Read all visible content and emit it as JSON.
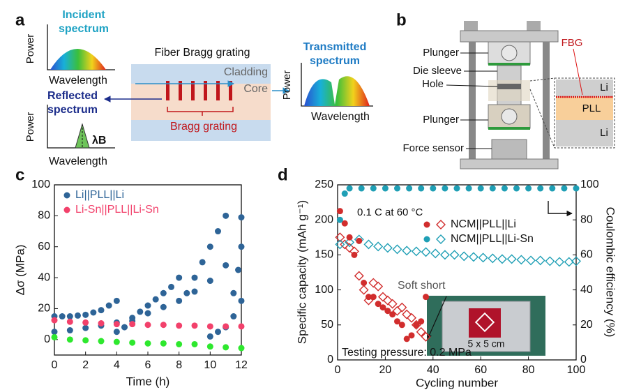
{
  "panels": {
    "a": {
      "label": "a",
      "incident_spectrum": [
        "Incident",
        "spectrum"
      ],
      "power": "Power",
      "wavelength": "Wavelength",
      "fiber_title": "Fiber Bragg grating",
      "cladding": "Cladding",
      "core": "Core",
      "transmitted_spectrum": [
        "Transmitted",
        "spectrum"
      ],
      "reflected_spectrum": [
        "Reflected",
        "spectrum"
      ],
      "bragg_grating": "Bragg grating",
      "lambda_b": "λB"
    },
    "b": {
      "label": "b",
      "fbg": "FBG",
      "plunger": "Plunger",
      "die_sleeve": "Die sleeve",
      "hole": "Hole",
      "force_sensor": "Force sensor",
      "li": "Li",
      "pll": "PLL"
    }
  },
  "chart_data": [
    {
      "type": "scatter",
      "panel": "c",
      "x_label": "Time (h)",
      "y_label": "Δσ (MPa)",
      "xlim": [
        0,
        12
      ],
      "xticks": [
        0,
        2,
        4,
        6,
        8,
        10,
        12
      ],
      "ylim": [
        -10,
        100
      ],
      "yticks": [
        0,
        20,
        40,
        60,
        80,
        100
      ],
      "legend": "upper left",
      "series": [
        {
          "name": "Li||PLL||Li",
          "color": "#2e6497",
          "marker": "circle",
          "x": [
            0,
            0.5,
            1,
            1.5,
            2,
            2.5,
            3,
            3.5,
            4,
            0,
            1,
            2,
            3,
            4,
            5,
            6,
            7,
            8,
            9,
            10,
            11,
            12,
            4,
            4.5,
            5,
            5.5,
            6,
            6.5,
            7,
            7.5,
            8,
            8.5,
            9,
            9.5,
            10,
            10.5,
            11,
            10,
            10.5,
            11,
            11.5,
            12,
            11.5,
            11.8,
            12
          ],
          "values": [
            15,
            15,
            15,
            15.5,
            16,
            17.5,
            19,
            22,
            25,
            5,
            6,
            7.5,
            9,
            11,
            14,
            17,
            21,
            25,
            31,
            38,
            48,
            60,
            5,
            8,
            12,
            18,
            22,
            26,
            30,
            34,
            40,
            30,
            40,
            50,
            60,
            70,
            80,
            2,
            5,
            8,
            15,
            25,
            30,
            45,
            79
          ]
        },
        {
          "name": "Li-Sn||PLL||Li-Sn",
          "color": "#f2416b",
          "marker": "circle",
          "x": [
            0,
            1,
            2,
            3,
            4,
            5,
            6,
            7,
            8,
            9,
            10,
            11,
            12
          ],
          "values": [
            12.5,
            11.5,
            11,
            10.5,
            10,
            10,
            9.5,
            9.5,
            9,
            9,
            8.5,
            8.5,
            8.5
          ]
        },
        {
          "color": "#2ee82e",
          "marker": "circle",
          "x": [
            0,
            1,
            2,
            3,
            4,
            5,
            6,
            7,
            8,
            9,
            10,
            11,
            12
          ],
          "values": [
            1.5,
            0,
            -0.5,
            -1,
            -1.5,
            -2,
            -2.5,
            -2.5,
            -3,
            -3,
            -4.5,
            -5,
            -5.5
          ]
        }
      ]
    },
    {
      "type": "scatter",
      "panel": "d",
      "x_label": "Cycling number",
      "y_label": "Specific capacity (mAh g⁻¹)",
      "y2_label": "Coulombic efficiency (%)",
      "xlim": [
        0,
        100
      ],
      "xticks": [
        0,
        20,
        40,
        60,
        80,
        100
      ],
      "ylim": [
        0,
        250
      ],
      "yticks": [
        0,
        50,
        100,
        150,
        200,
        250
      ],
      "y2lim": [
        0,
        100
      ],
      "y2ticks": [
        0,
        20,
        40,
        60,
        80,
        100
      ],
      "legend": "center right",
      "annotations": [
        "0.1 C at 60 °C",
        "Soft short",
        "Testing pressure: 0.2 MPa",
        "5 x 5 cm"
      ],
      "series": [
        {
          "name": "NCM||PLL||Li",
          "color": "#d12d2d",
          "marker": "diamond-open",
          "x": [
            1,
            3,
            5,
            7,
            9,
            11,
            13,
            15,
            17,
            19,
            21,
            23,
            25,
            27,
            29,
            31,
            33,
            35,
            37
          ],
          "values": [
            175,
            165,
            160,
            155,
            120,
            100,
            85,
            110,
            105,
            90,
            85,
            80,
            70,
            75,
            65,
            60,
            50,
            40,
            33
          ]
        },
        {
          "name": "NCM||PLL||Li-Sn",
          "color": "#1f9fb5",
          "marker": "diamond-open",
          "x": [
            1,
            5,
            9,
            13,
            17,
            21,
            25,
            29,
            33,
            37,
            41,
            45,
            49,
            53,
            57,
            61,
            65,
            69,
            73,
            77,
            81,
            85,
            89,
            93,
            97,
            100
          ],
          "values": [
            165,
            168,
            172,
            165,
            162,
            160,
            158,
            156,
            155,
            154,
            152,
            150,
            150,
            148,
            147,
            146,
            145,
            144,
            144,
            143,
            142,
            142,
            141,
            140,
            140,
            141
          ]
        },
        {
          "color": "#d12d2d",
          "marker": "circle",
          "axis": "y2",
          "x": [
            1,
            3,
            5,
            7,
            9,
            11,
            13,
            15,
            17,
            19,
            21,
            23,
            25,
            27,
            29,
            31,
            33,
            35,
            37
          ],
          "values": [
            85,
            78,
            70,
            60,
            68,
            44,
            36,
            36,
            32,
            30,
            28,
            26,
            22,
            20,
            12,
            14,
            20,
            22,
            36
          ]
        },
        {
          "color": "#1f9fb5",
          "marker": "circle",
          "axis": "y2",
          "x": [
            1,
            3,
            5,
            10,
            15,
            20,
            25,
            30,
            35,
            40,
            45,
            50,
            55,
            60,
            65,
            70,
            75,
            80,
            85,
            90,
            95,
            100
          ],
          "values": [
            80,
            95,
            98,
            98,
            98,
            98,
            98,
            98,
            98,
            98,
            98,
            98,
            98,
            98,
            98,
            98,
            98,
            98,
            98,
            98,
            98,
            98
          ]
        }
      ]
    }
  ]
}
